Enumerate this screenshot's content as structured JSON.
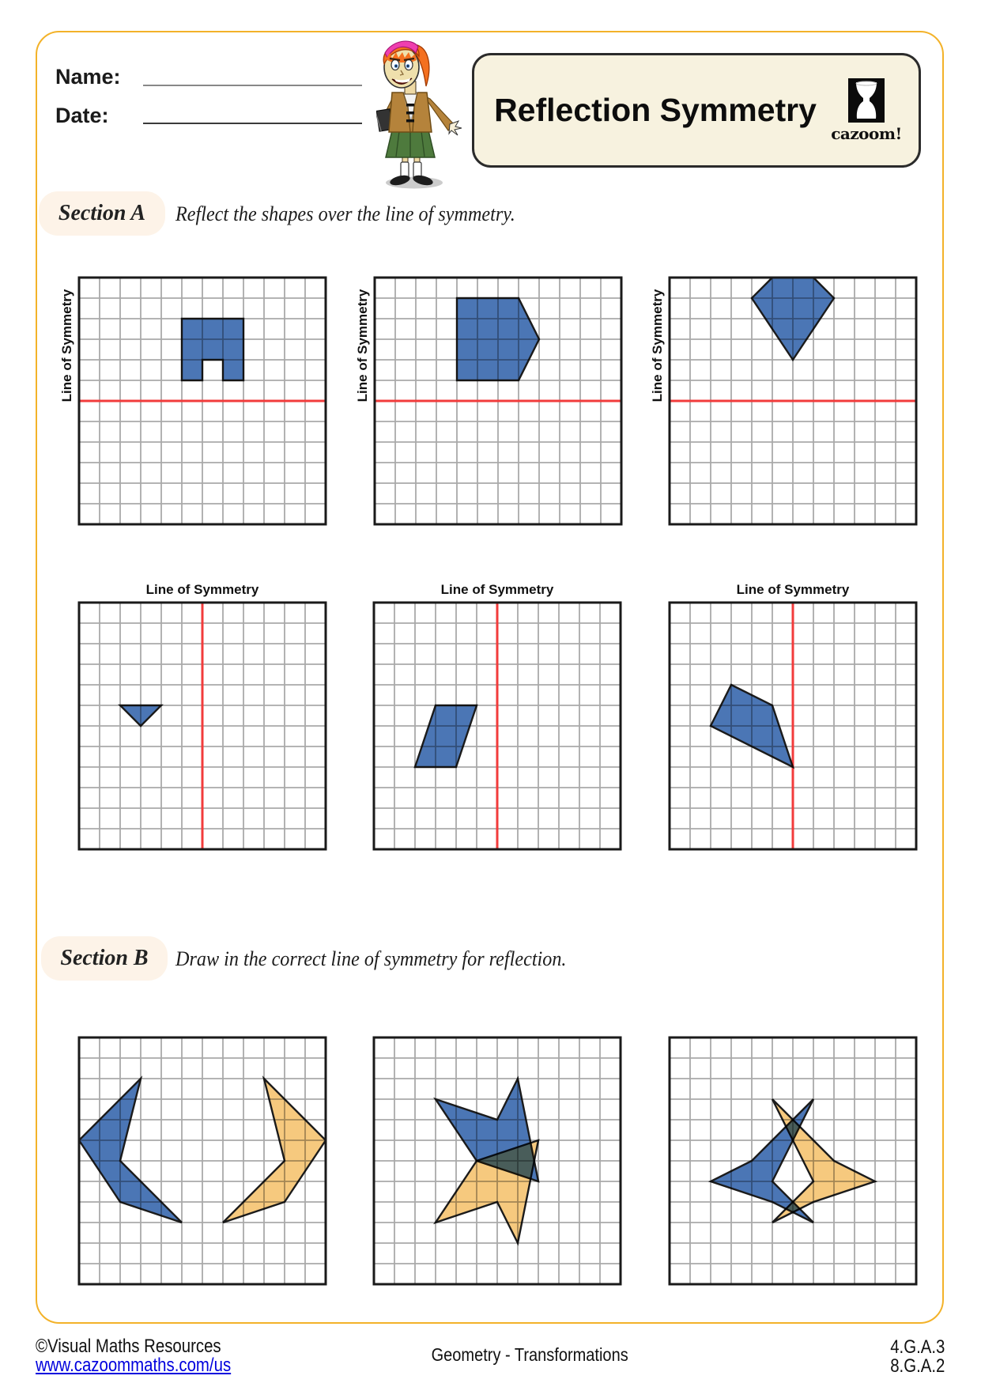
{
  "header": {
    "name_label": "Name:",
    "date_label": "Date:",
    "title": "Reflection Symmetry",
    "logo_text": "cazoom!"
  },
  "sections": {
    "a": {
      "label": "Section A",
      "instruction": "Reflect the shapes over the line of symmetry."
    },
    "b": {
      "label": "Section B",
      "instruction": "Draw in the correct line of symmetry for reflection."
    }
  },
  "grid_label": "Line of Symmetry",
  "colors": {
    "blue": "#4B76B5",
    "orange": "#F6C97E",
    "red": "#F23B3B",
    "gridline": "#A9A9A9",
    "grid_border": "#1A1A1A",
    "shape_stroke": "#1B1B1B",
    "accent_yellow": "#F3B229",
    "link_blue": "#0000DD"
  },
  "grids": [
    {
      "id": "a1",
      "cols": 12,
      "rows": 12,
      "sym_line": {
        "dir": "h",
        "pos": 6
      },
      "shapes": [
        {
          "color": "blue",
          "points": [
            [
              5,
              2
            ],
            [
              8,
              2
            ],
            [
              8,
              5
            ],
            [
              7,
              5
            ],
            [
              7,
              4
            ],
            [
              6,
              4
            ],
            [
              6,
              5
            ],
            [
              5,
              5
            ]
          ]
        }
      ]
    },
    {
      "id": "a2",
      "cols": 12,
      "rows": 12,
      "sym_line": {
        "dir": "h",
        "pos": 6
      },
      "shapes": [
        {
          "color": "blue",
          "points": [
            [
              4,
              1
            ],
            [
              7,
              1
            ],
            [
              8,
              3
            ],
            [
              7,
              5
            ],
            [
              4,
              5
            ]
          ]
        }
      ]
    },
    {
      "id": "a3",
      "cols": 12,
      "rows": 12,
      "sym_line": {
        "dir": "h",
        "pos": 6
      },
      "shapes": [
        {
          "color": "blue",
          "points": [
            [
              5,
              0
            ],
            [
              7,
              0
            ],
            [
              8,
              1
            ],
            [
              6,
              4
            ],
            [
              4,
              1
            ]
          ]
        }
      ]
    },
    {
      "id": "a4",
      "cols": 12,
      "rows": 12,
      "sym_line": {
        "dir": "v",
        "pos": 6
      },
      "shapes": [
        {
          "color": "blue",
          "points": [
            [
              2,
              5
            ],
            [
              4,
              5
            ],
            [
              3,
              6
            ]
          ]
        }
      ]
    },
    {
      "id": "a5",
      "cols": 12,
      "rows": 12,
      "sym_line": {
        "dir": "v",
        "pos": 6
      },
      "shapes": [
        {
          "color": "blue",
          "points": [
            [
              3,
              5
            ],
            [
              5,
              5
            ],
            [
              4,
              8
            ],
            [
              2,
              8
            ]
          ]
        }
      ]
    },
    {
      "id": "a6",
      "cols": 12,
      "rows": 12,
      "sym_line": {
        "dir": "v",
        "pos": 6
      },
      "shapes": [
        {
          "color": "blue",
          "points": [
            [
              3,
              4
            ],
            [
              5,
              5
            ],
            [
              6,
              8
            ],
            [
              2,
              6
            ]
          ]
        }
      ]
    },
    {
      "id": "b1",
      "cols": 12,
      "rows": 12,
      "sym_line": null,
      "shapes": [
        {
          "color": "blue",
          "points": [
            [
              3,
              2
            ],
            [
              0,
              5
            ],
            [
              2,
              8
            ],
            [
              5,
              9
            ],
            [
              2,
              6
            ]
          ]
        },
        {
          "color": "orange",
          "points": [
            [
              9,
              2
            ],
            [
              12,
              5
            ],
            [
              10,
              8
            ],
            [
              7,
              9
            ],
            [
              10,
              6
            ]
          ]
        }
      ]
    },
    {
      "id": "b2",
      "cols": 12,
      "rows": 12,
      "sym_line": null,
      "shapes": [
        {
          "color": "orange",
          "points": [
            [
              3,
              9
            ],
            [
              6,
              8
            ],
            [
              7,
              10
            ],
            [
              8,
              5
            ],
            [
              5,
              6
            ]
          ]
        },
        {
          "color": "blue",
          "points": [
            [
              3,
              3
            ],
            [
              6,
              4
            ],
            [
              7,
              2
            ],
            [
              8,
              7
            ],
            [
              5,
              6
            ]
          ]
        }
      ]
    },
    {
      "id": "b3",
      "cols": 12,
      "rows": 12,
      "sym_line": null,
      "shapes": [
        {
          "color": "orange",
          "points": [
            [
              5,
              3
            ],
            [
              8,
              6
            ],
            [
              10,
              7
            ],
            [
              7,
              8
            ],
            [
              5,
              9
            ],
            [
              7,
              7
            ]
          ]
        },
        {
          "color": "blue",
          "points": [
            [
              7,
              3
            ],
            [
              4,
              6
            ],
            [
              2,
              7
            ],
            [
              5,
              8
            ],
            [
              7,
              9
            ],
            [
              5,
              7
            ]
          ]
        }
      ]
    }
  ],
  "footer": {
    "copyright": "©Visual Maths Resources",
    "url": "www.cazoommaths.com/us",
    "center": "Geometry - Transformations",
    "standards": [
      "4.G.A.3",
      "8.G.A.2"
    ]
  }
}
